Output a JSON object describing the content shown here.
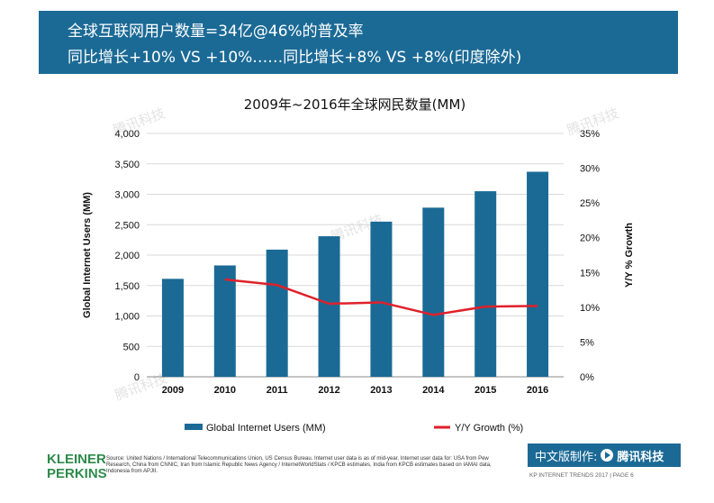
{
  "header": {
    "line1": "全球互联网用户数量=34亿@46%的普及率",
    "line2": "同比增长+10% VS +10%……同比增长+8% VS +8%(印度除外)"
  },
  "chart_data": {
    "type": "bar",
    "title": "2009年~2016年全球网民数量(MM)",
    "categories": [
      "2009",
      "2010",
      "2011",
      "2012",
      "2013",
      "2014",
      "2015",
      "2016"
    ],
    "series": [
      {
        "name": "Global Internet Users (MM)",
        "type": "bar",
        "axis": "left",
        "color": "#1b6a96",
        "values": [
          1610,
          1830,
          2090,
          2310,
          2550,
          2780,
          3050,
          3370
        ]
      },
      {
        "name": "Y/Y Growth (%)",
        "type": "line",
        "axis": "right",
        "color": "#e0202a",
        "values": [
          null,
          14.0,
          13.2,
          10.5,
          10.7,
          8.9,
          10.1,
          10.2
        ]
      }
    ],
    "ylabel": "Global Internet Users (MM)",
    "y2label": "Y/Y % Growth",
    "ylim": [
      0,
      4000
    ],
    "y2lim": [
      0,
      35
    ],
    "yticks": [
      "0",
      "500",
      "1,000",
      "1,500",
      "2,000",
      "2,500",
      "3,000",
      "3,500",
      "4,000"
    ],
    "y2ticks": [
      "0%",
      "5%",
      "10%",
      "15%",
      "20%",
      "25%",
      "30%",
      "35%"
    ],
    "grid": true,
    "legend_position": "bottom",
    "watermark": "腾讯科技"
  },
  "footer": {
    "logo_line1": "KLEINER",
    "logo_line2": "PERKINS",
    "source": "Source: United Nations / International Telecommunications Union, US Census Bureau. Internet user data is as of mid-year. Internet user data for: USA from Pew Research, China from CNNIC, Iran from Islamic Republic News Agency / InternetWorldStats / KPCB estimates, India from KPCB estimates based on IAMAI data, Indonesia from APJII.",
    "badge_text": "中文版制作:",
    "badge_brand": "腾讯科技",
    "page_info": "KP INTERNET TRENDS 2017  |  PAGE 6"
  }
}
